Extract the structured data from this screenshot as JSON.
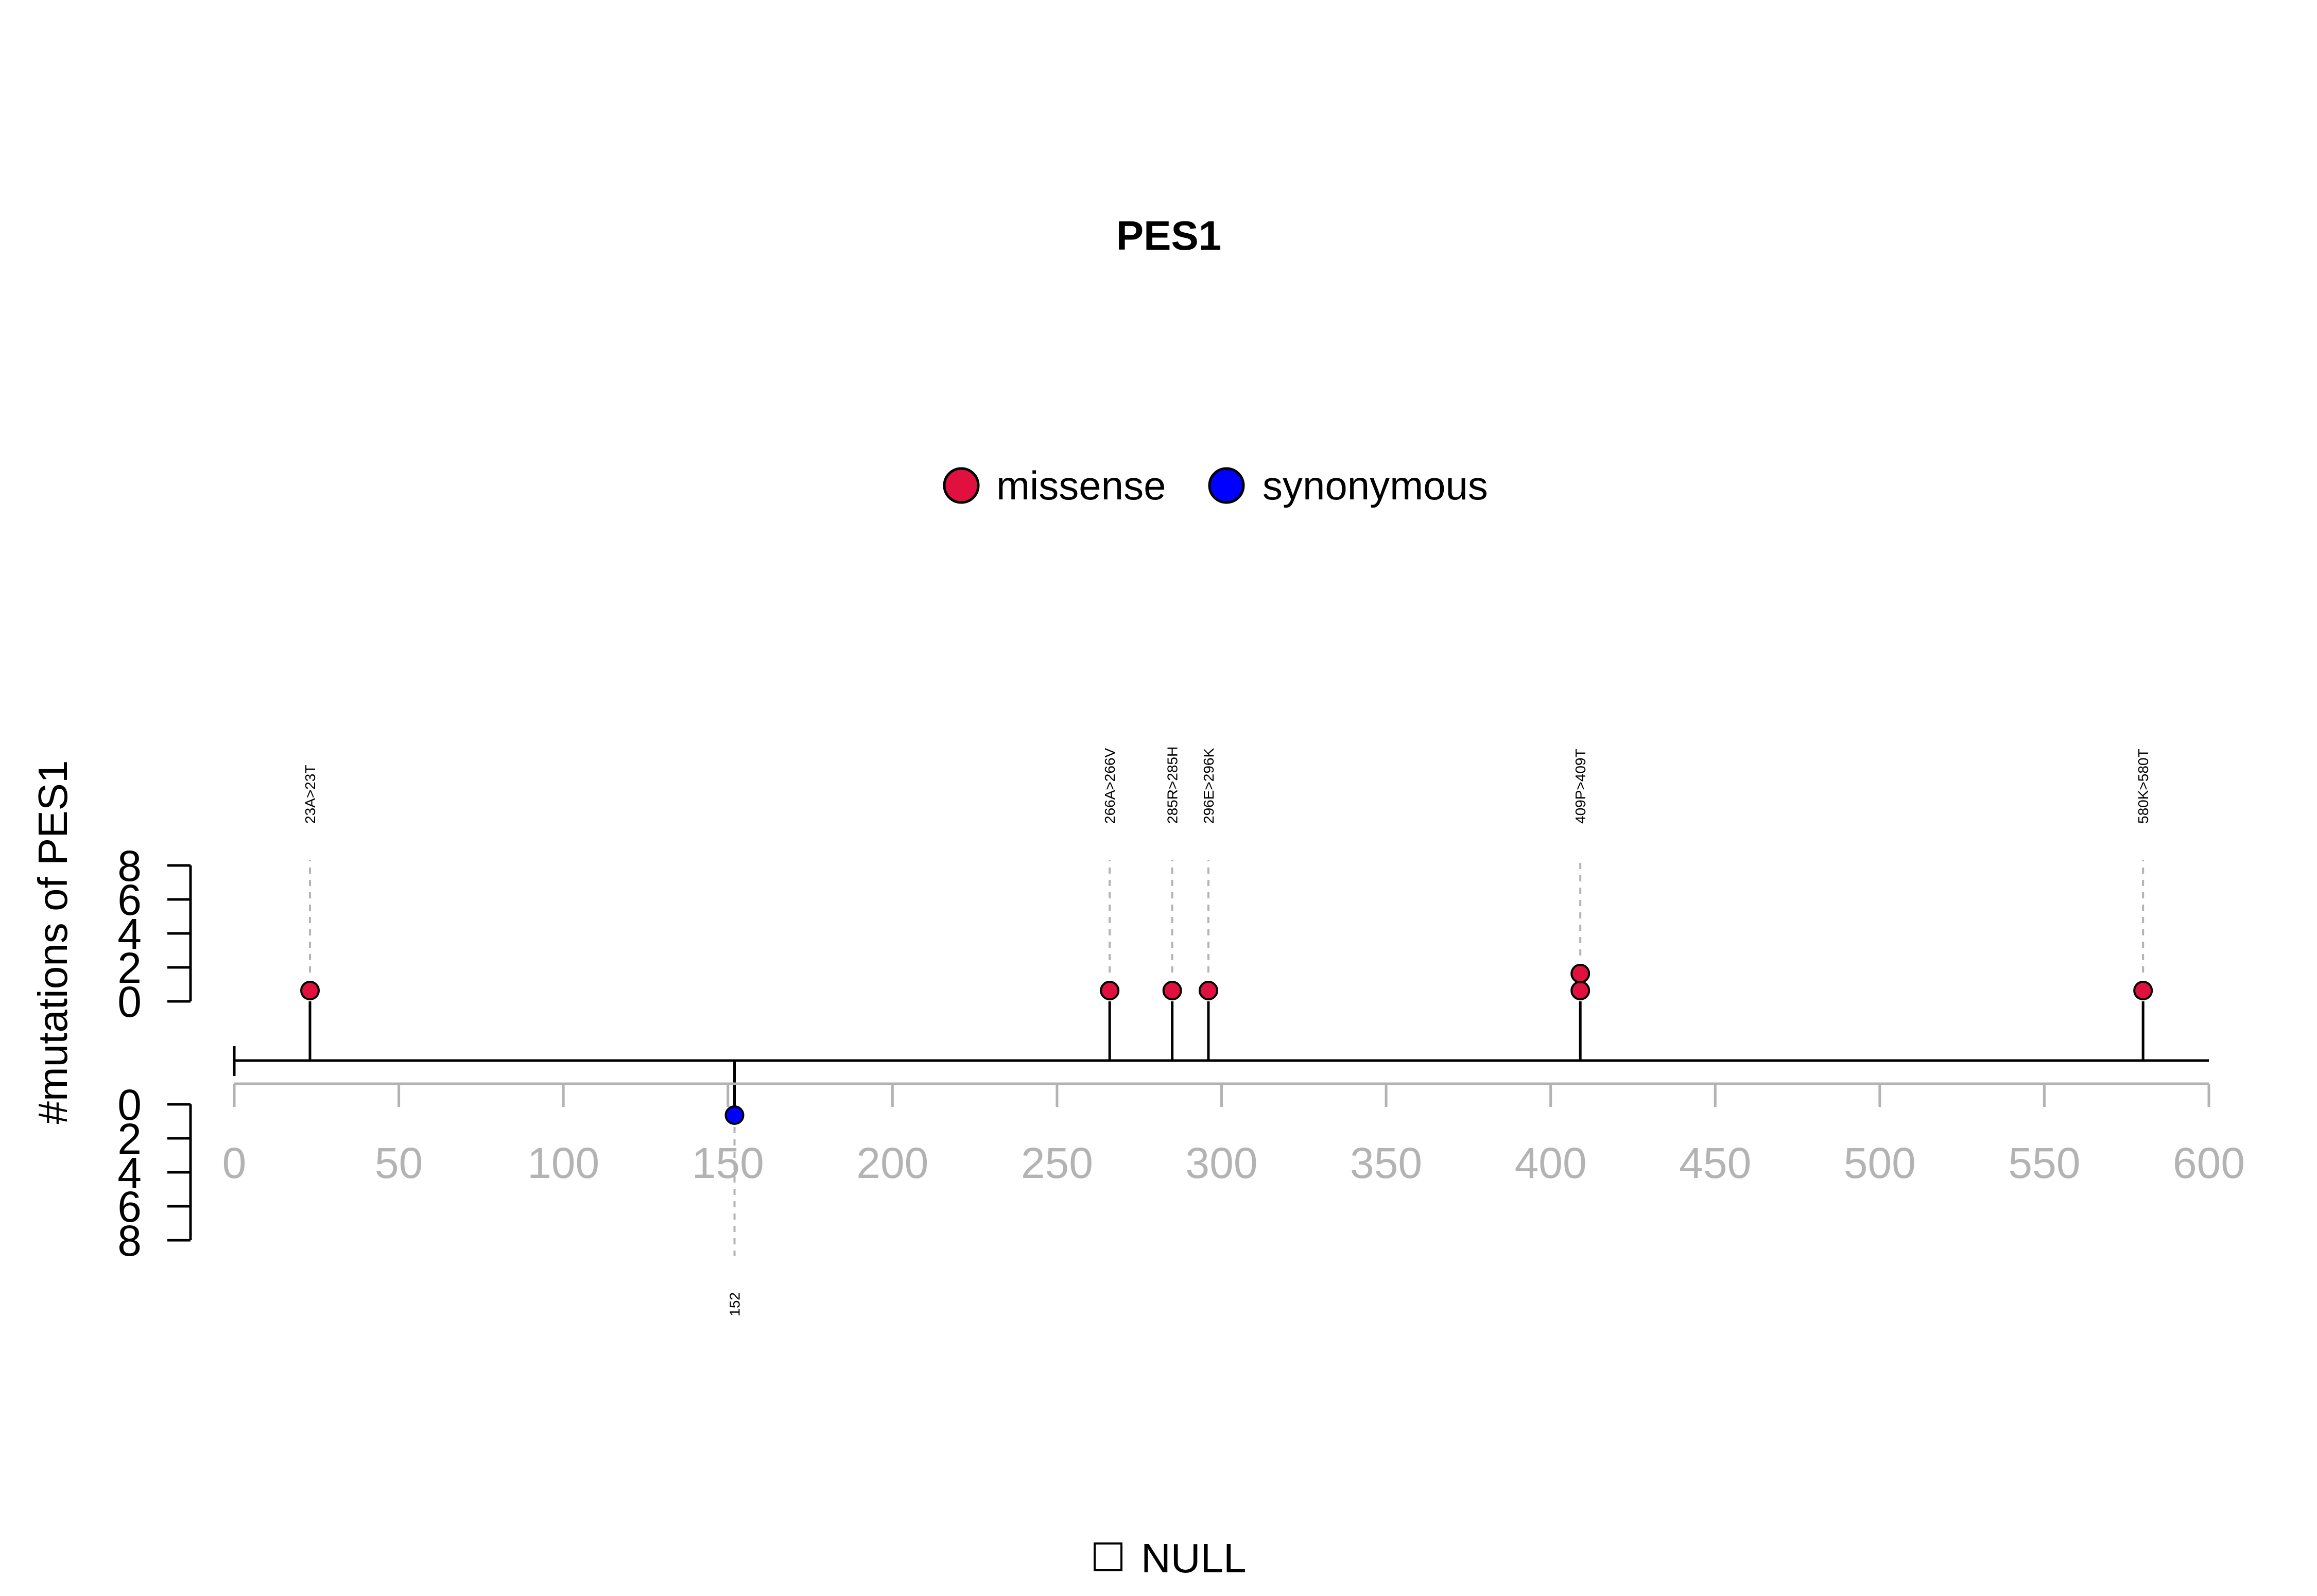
{
  "chart_data": {
    "type": "lollipop",
    "title": "PES1",
    "ylabel": "#mutations of PES1",
    "xlim": [
      0,
      600
    ],
    "x_ticks": [
      "0",
      "50",
      "100",
      "150",
      "200",
      "250",
      "300",
      "350",
      "400",
      "450",
      "500",
      "550",
      "600"
    ],
    "upper_y_ticks": [
      "0",
      "2",
      "4",
      "6",
      "8"
    ],
    "lower_y_ticks": [
      "0",
      "2",
      "4",
      "6",
      "8"
    ],
    "legend": [
      {
        "name": "missense",
        "color": "#e0103f"
      },
      {
        "name": "synonymous",
        "color": "#0000ff"
      }
    ],
    "domain_legend": "NULL",
    "mutations": [
      {
        "position": 23,
        "count": 1,
        "type": "missense",
        "label": "23A>23T",
        "strand": "up"
      },
      {
        "position": 152,
        "count": 1,
        "type": "synonymous",
        "label": "152",
        "strand": "down"
      },
      {
        "position": 266,
        "count": 1,
        "type": "missense",
        "label": "266A>266V",
        "strand": "up"
      },
      {
        "position": 285,
        "count": 1,
        "type": "missense",
        "label": "285R>285H",
        "strand": "up"
      },
      {
        "position": 296,
        "count": 1,
        "type": "missense",
        "label": "296E>296K",
        "strand": "up"
      },
      {
        "position": 409,
        "count": 2,
        "type": "missense",
        "label": "409P>409T",
        "strand": "up"
      },
      {
        "position": 580,
        "count": 1,
        "type": "missense",
        "label": "580K>580T",
        "strand": "up"
      }
    ]
  }
}
